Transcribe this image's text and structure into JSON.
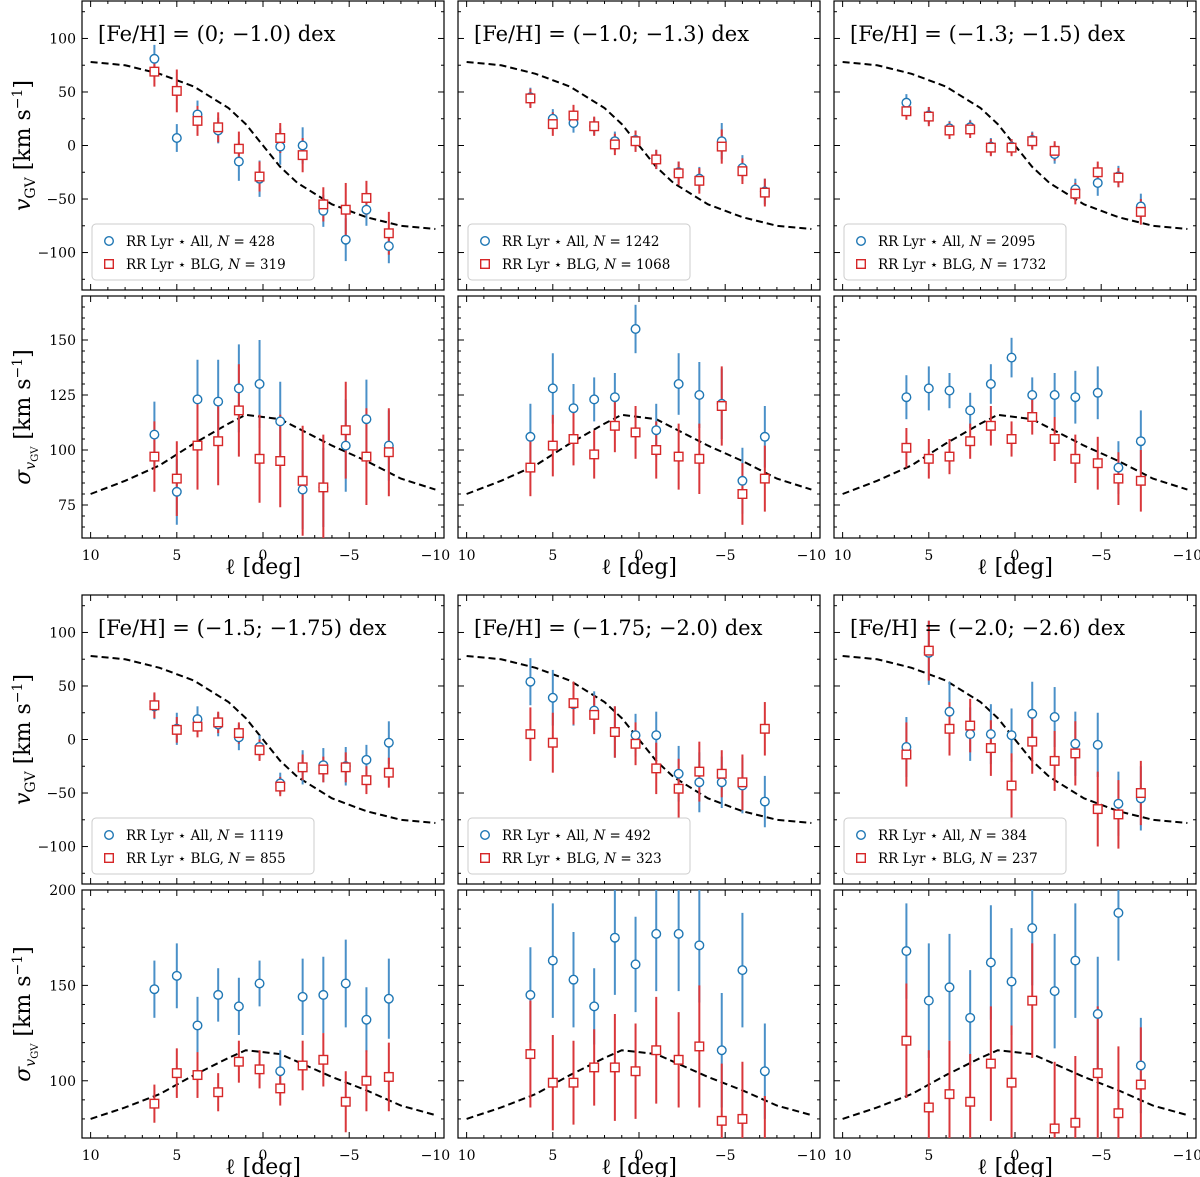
{
  "figure": {
    "x_label": "ℓ [deg]",
    "mean_label": "v",
    "mean_sub": "GV",
    "disp_label": "σ",
    "disp_sub": "v",
    "disp_subsub": "GV",
    "unit_label": "[km s",
    "unit_sup": "−1",
    "unit_close": "]"
  },
  "legend": {
    "all_label": "RR Lyr ⋆ All, ",
    "blg_label": "RR Lyr ⋆ BLG, ",
    "n_prefix": "N",
    "n_eq": " = "
  },
  "colors": {
    "all": "#1f77b4",
    "blg": "#d62728",
    "model": "#000000"
  },
  "chart_data": {
    "type": "scatter",
    "x": [
      6.3,
      5.0,
      3.8,
      2.6,
      1.4,
      0.2,
      -1.0,
      -2.3,
      -3.5,
      -4.8,
      -6.0,
      -7.3
    ],
    "xlim": [
      10.5,
      -10.5
    ],
    "xticks": [
      10,
      5,
      0,
      -5,
      -10
    ],
    "xtick_labels": [
      "10",
      "5",
      "0",
      "−5",
      "−10"
    ],
    "mean_ylim": [
      -135,
      135
    ],
    "mean_yticks": [
      100,
      50,
      0,
      -50,
      -100
    ],
    "mean_ytick_labels": [
      "100",
      "50",
      "0",
      "−50",
      "−100"
    ],
    "model_mean": {
      "x": [
        10,
        8,
        6,
        4,
        2,
        1,
        0,
        -1,
        -2,
        -4,
        -6,
        -8,
        -10
      ],
      "y": [
        78,
        75,
        67,
        55,
        35,
        20,
        0,
        -20,
        -35,
        -55,
        -67,
        -75,
        -78
      ]
    },
    "model_disp": {
      "x": [
        10,
        8,
        6,
        4,
        2,
        1,
        0,
        -1,
        -2,
        -4,
        -6,
        -8,
        -10
      ],
      "y": [
        80,
        86,
        93,
        103,
        112,
        116,
        115,
        114,
        110,
        102,
        95,
        87,
        82
      ]
    },
    "panels": [
      {
        "title": "[Fe/H] = (0; −1.0) dex",
        "n_all": "428",
        "n_blg": "319",
        "disp_ylim": [
          60,
          170
        ],
        "disp_yticks": [
          150,
          125,
          100,
          75
        ],
        "disp_ytick_labels": [
          "150",
          "125",
          "100",
          "75"
        ],
        "mean_all": [
          81,
          7,
          29,
          14,
          -15,
          -31,
          -1,
          0,
          -61,
          -88,
          -60,
          -94
        ],
        "mean_all_err": [
          13,
          13,
          13,
          12,
          18,
          17,
          17,
          17,
          15,
          20,
          15,
          16
        ],
        "mean_blg": [
          69,
          51,
          23,
          17,
          -3,
          -29,
          7,
          -9,
          -55,
          -60,
          -49,
          -82
        ],
        "mean_blg_err": [
          14,
          20,
          14,
          14,
          16,
          14,
          14,
          16,
          16,
          25,
          16,
          20
        ],
        "disp_all": [
          107,
          81,
          123,
          122,
          128,
          130,
          113,
          82,
          83,
          102,
          114,
          102
        ],
        "disp_all_err": [
          15,
          15,
          18,
          19,
          20,
          20,
          18,
          18,
          18,
          21,
          18,
          16
        ],
        "disp_blg": [
          97,
          87,
          102,
          104,
          118,
          96,
          95,
          86,
          83,
          109,
          97,
          99
        ],
        "disp_blg_err": [
          16,
          17,
          20,
          20,
          21,
          20,
          21,
          25,
          24,
          22,
          22,
          20
        ]
      },
      {
        "title": "[Fe/H] = (−1.0; −1.3) dex",
        "n_all": "1242",
        "n_blg": "1068",
        "disp_ylim": [
          60,
          170
        ],
        "disp_yticks": [
          150,
          125,
          100,
          75
        ],
        "disp_ytick_labels": [
          "150",
          "125",
          "100",
          "75"
        ],
        "mean_all": [
          45,
          25,
          21,
          18,
          4,
          5,
          -13,
          -25,
          -31,
          4,
          -21,
          -43
        ],
        "mean_all_err": [
          9,
          9,
          9,
          8,
          9,
          9,
          9,
          10,
          11,
          17,
          12,
          12
        ],
        "mean_blg": [
          44,
          20,
          28,
          18,
          1,
          4,
          -13,
          -26,
          -33,
          -1,
          -24,
          -44
        ],
        "mean_blg_err": [
          9,
          11,
          10,
          9,
          10,
          10,
          9,
          11,
          12,
          16,
          12,
          13
        ],
        "disp_all": [
          106,
          128,
          119,
          123,
          124,
          155,
          109,
          130,
          125,
          121,
          86,
          106
        ],
        "disp_all_err": [
          15,
          16,
          11,
          10,
          11,
          11,
          12,
          14,
          15,
          16,
          15,
          14
        ],
        "disp_blg": [
          92,
          102,
          105,
          98,
          111,
          108,
          100,
          97,
          96,
          120,
          80,
          87
        ],
        "disp_blg_err": [
          13,
          14,
          12,
          11,
          12,
          12,
          13,
          15,
          16,
          18,
          14,
          15
        ]
      },
      {
        "title": "[Fe/H] = (−1.3; −1.5) dex",
        "n_all": "2095",
        "n_blg": "1732",
        "disp_ylim": [
          60,
          170
        ],
        "disp_yticks": [
          150,
          125,
          100,
          75
        ],
        "disp_ytick_labels": [
          "150",
          "125",
          "100",
          "75"
        ],
        "mean_all": [
          40,
          28,
          16,
          17,
          -1,
          -1,
          5,
          -8,
          -41,
          -35,
          -29,
          -57
        ],
        "mean_all_err": [
          8,
          8,
          7,
          7,
          8,
          7,
          8,
          9,
          10,
          12,
          10,
          12
        ],
        "mean_blg": [
          32,
          27,
          14,
          15,
          -2,
          -2,
          4,
          -5,
          -45,
          -25,
          -30,
          -62
        ],
        "mean_blg_err": [
          8,
          9,
          8,
          8,
          8,
          8,
          8,
          9,
          10,
          10,
          9,
          12
        ],
        "disp_all": [
          124,
          128,
          127,
          118,
          130,
          142,
          125,
          125,
          124,
          126,
          92,
          104
        ],
        "disp_all_err": [
          10,
          10,
          8,
          8,
          9,
          9,
          8,
          10,
          12,
          12,
          12,
          14
        ],
        "disp_blg": [
          101,
          96,
          97,
          104,
          111,
          105,
          115,
          105,
          96,
          94,
          87,
          86
        ],
        "disp_blg_err": [
          9,
          9,
          8,
          8,
          9,
          8,
          8,
          10,
          11,
          12,
          12,
          14
        ]
      },
      {
        "title": "[Fe/H] = (−1.5; −1.75) dex",
        "n_all": "1119",
        "n_blg": "855",
        "disp_ylim": [
          70,
          200
        ],
        "disp_yticks": [
          200,
          150,
          100
        ],
        "disp_ytick_labels": [
          "200",
          "150",
          "100"
        ],
        "mean_all": [
          31,
          10,
          19,
          14,
          2,
          -7,
          -41,
          -26,
          -24,
          -25,
          -19,
          -3
        ],
        "mean_all_err": [
          12,
          15,
          12,
          11,
          12,
          11,
          10,
          16,
          16,
          18,
          14,
          20
        ],
        "mean_blg": [
          32,
          9,
          12,
          16,
          6,
          -10,
          -44,
          -26,
          -28,
          -26,
          -38,
          -31
        ],
        "mean_blg_err": [
          12,
          12,
          10,
          10,
          10,
          10,
          9,
          12,
          12,
          14,
          13,
          14
        ],
        "disp_all": [
          148,
          155,
          129,
          145,
          139,
          151,
          105,
          144,
          145,
          151,
          132,
          143
        ],
        "disp_all_err": [
          15,
          17,
          15,
          14,
          15,
          12,
          11,
          20,
          20,
          23,
          17,
          21
        ],
        "disp_blg": [
          88,
          104,
          103,
          94,
          110,
          106,
          96,
          108,
          111,
          89,
          100,
          102
        ],
        "disp_blg_err": [
          10,
          13,
          12,
          10,
          11,
          10,
          9,
          13,
          14,
          16,
          16,
          18
        ]
      },
      {
        "title": "[Fe/H] = (−1.75; −2.0) dex",
        "n_all": "492",
        "n_blg": "323",
        "disp_ylim": [
          70,
          200
        ],
        "disp_yticks": [
          200,
          150,
          100
        ],
        "disp_ytick_labels": [
          "200",
          "150",
          "100"
        ],
        "mean_all": [
          54,
          39,
          33,
          27,
          7,
          4,
          4,
          -32,
          -40,
          -40,
          -43,
          -58
        ],
        "mean_all_err": [
          22,
          26,
          20,
          18,
          24,
          20,
          22,
          26,
          28,
          24,
          26,
          24
        ],
        "mean_blg": [
          5,
          -3,
          34,
          23,
          7,
          -4,
          -27,
          -46,
          -30,
          -32,
          -40,
          10
        ],
        "mean_blg_err": [
          25,
          28,
          20,
          18,
          24,
          20,
          24,
          28,
          28,
          22,
          26,
          25
        ],
        "disp_all": [
          145,
          163,
          153,
          139,
          175,
          161,
          177,
          177,
          171,
          116,
          158,
          105
        ],
        "disp_all_err": [
          25,
          30,
          25,
          20,
          30,
          25,
          30,
          30,
          30,
          30,
          30,
          25
        ],
        "disp_blg": [
          114,
          99,
          99,
          107,
          107,
          105,
          116,
          111,
          118,
          79,
          80,
          67
        ],
        "disp_blg_err": [
          28,
          25,
          22,
          20,
          28,
          25,
          28,
          25,
          32,
          30,
          30,
          25
        ]
      },
      {
        "title": "[Fe/H] = (−2.0; −2.6) dex",
        "n_all": "384",
        "n_blg": "237",
        "disp_ylim": [
          70,
          200
        ],
        "disp_yticks": [
          200,
          150,
          100
        ],
        "disp_ytick_labels": [
          "200",
          "150",
          "100"
        ],
        "mean_all": [
          -7,
          81,
          26,
          5,
          5,
          4,
          24,
          21,
          -4,
          -5,
          -60,
          -55
        ],
        "mean_all_err": [
          28,
          30,
          28,
          25,
          28,
          25,
          30,
          28,
          30,
          30,
          30,
          30
        ],
        "mean_blg": [
          -14,
          83,
          10,
          13,
          -8,
          -43,
          -2,
          -20,
          -13,
          -65,
          -70,
          -50
        ],
        "mean_blg_err": [
          30,
          28,
          25,
          25,
          26,
          30,
          30,
          28,
          30,
          35,
          32,
          30
        ],
        "disp_all": [
          168,
          142,
          149,
          133,
          162,
          152,
          180,
          147,
          163,
          135,
          188,
          108
        ],
        "disp_all_err": [
          25,
          30,
          28,
          25,
          30,
          28,
          30,
          30,
          30,
          30,
          25,
          25
        ],
        "disp_blg": [
          121,
          86,
          93,
          89,
          109,
          99,
          142,
          75,
          78,
          104,
          83,
          98
        ],
        "disp_blg_err": [
          30,
          30,
          28,
          25,
          30,
          30,
          30,
          35,
          35,
          35,
          35,
          30
        ]
      }
    ]
  }
}
